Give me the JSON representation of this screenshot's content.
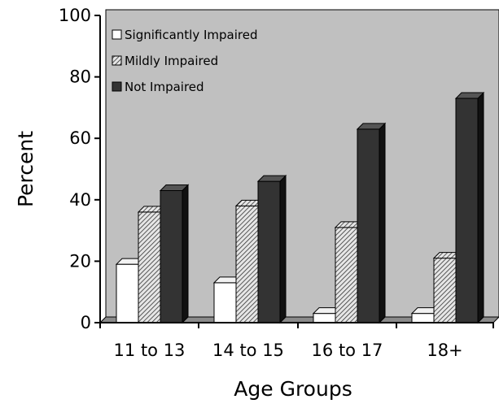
{
  "chart_data": {
    "type": "bar",
    "title": "",
    "xlabel": "Age Groups",
    "ylabel": "Percent",
    "ylim": [
      0,
      100
    ],
    "yticks": [
      0,
      20,
      40,
      60,
      80,
      100
    ],
    "categories": [
      "11 to 13",
      "14 to 15",
      "16 to 17",
      "18+"
    ],
    "series": [
      {
        "name": "Significantly Impaired",
        "values": [
          19,
          13,
          3,
          3
        ],
        "fill": "#ffffff",
        "pattern": "solid"
      },
      {
        "name": "Mildly Impaired",
        "values": [
          36,
          38,
          31,
          21
        ],
        "fill": "#c8c8c8",
        "pattern": "diagonal-hatch"
      },
      {
        "name": "Not Impaired",
        "values": [
          43,
          46,
          63,
          73
        ],
        "fill": "#333333",
        "pattern": "solid"
      }
    ],
    "legend_position": "top-left",
    "plot_background": "#c0c0c0",
    "grid": false,
    "style": "3d-bar"
  }
}
